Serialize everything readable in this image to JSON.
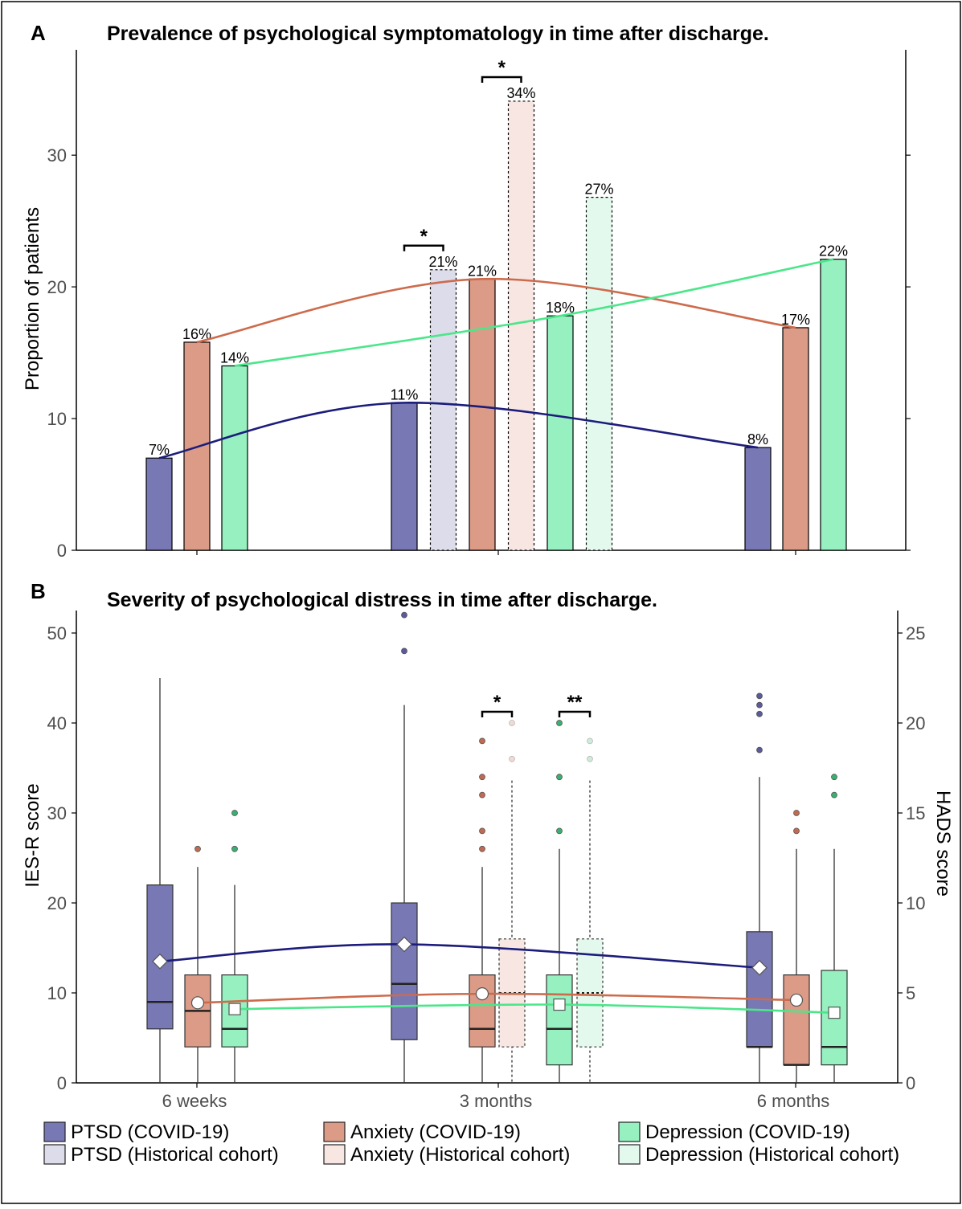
{
  "colors": {
    "ptsd": "#7878b4",
    "ptsd_hist": "#dcdcea",
    "anxiety": "#dc9b87",
    "anxiety_hist": "#f7e6e1",
    "depression": "#96f0c0",
    "depression_hist": "#e4f9ee",
    "line_ptsd": "#1c1c7c",
    "line_anxiety": "#cd6b4c",
    "line_depression": "#4ce68a",
    "ptsd_dot": "#5a5a9c",
    "anxiety_dot": "#c06a52",
    "depression_dot": "#3ab070"
  },
  "legend": [
    {
      "label": "PTSD (COVID-19)",
      "color_key": "ptsd",
      "style": "solid"
    },
    {
      "label": "Anxiety (COVID-19)",
      "color_key": "anxiety",
      "style": "solid"
    },
    {
      "label": "Depression (COVID-19)",
      "color_key": "depression",
      "style": "solid"
    },
    {
      "label": "PTSD (Historical cohort)",
      "color_key": "ptsd_hist",
      "style": "solid"
    },
    {
      "label": "Anxiety (Historical cohort)",
      "color_key": "anxiety_hist",
      "style": "solid"
    },
    {
      "label": "Depression (Historical cohort)",
      "color_key": "depression_hist",
      "style": "solid"
    }
  ],
  "chart_data": [
    {
      "panel": "A",
      "type": "bar",
      "title": "Prevalence of psychological symptomatology in time after discharge.",
      "ylabel": "Proportion of patients",
      "ylim": [
        0,
        38
      ],
      "yticks": [
        0,
        10,
        20,
        30
      ],
      "grid": false,
      "categories": [
        "6 weeks",
        "3 months",
        "6 months"
      ],
      "bars": [
        {
          "time": "6 weeks",
          "series": "PTSD (COVID-19)",
          "color_key": "ptsd",
          "value": 7,
          "label": "7%",
          "historical": false
        },
        {
          "time": "6 weeks",
          "series": "Anxiety (COVID-19)",
          "color_key": "anxiety",
          "value": 15.8,
          "label": "16%",
          "historical": false
        },
        {
          "time": "6 weeks",
          "series": "Depression (COVID-19)",
          "color_key": "depression",
          "value": 14,
          "label": "14%",
          "historical": false
        },
        {
          "time": "3 months",
          "series": "PTSD (COVID-19)",
          "color_key": "ptsd",
          "value": 11.2,
          "label": "11%",
          "historical": false
        },
        {
          "time": "3 months",
          "series": "PTSD (Historical cohort)",
          "color_key": "ptsd_hist",
          "value": 21.3,
          "label": "21%",
          "historical": true
        },
        {
          "time": "3 months",
          "series": "Anxiety (COVID-19)",
          "color_key": "anxiety",
          "value": 20.6,
          "label": "21%",
          "historical": false
        },
        {
          "time": "3 months",
          "series": "Anxiety (Historical cohort)",
          "color_key": "anxiety_hist",
          "value": 34.1,
          "label": "34%",
          "historical": true
        },
        {
          "time": "3 months",
          "series": "Depression (COVID-19)",
          "color_key": "depression",
          "value": 17.8,
          "label": "18%",
          "historical": false
        },
        {
          "time": "3 months",
          "series": "Depression (Historical cohort)",
          "color_key": "depression_hist",
          "value": 26.8,
          "label": "27%",
          "historical": true
        },
        {
          "time": "6 months",
          "series": "PTSD (COVID-19)",
          "color_key": "ptsd",
          "value": 7.8,
          "label": "8%",
          "historical": false
        },
        {
          "time": "6 months",
          "series": "Anxiety (COVID-19)",
          "color_key": "anxiety",
          "value": 16.9,
          "label": "17%",
          "historical": false
        },
        {
          "time": "6 months",
          "series": "Depression (COVID-19)",
          "color_key": "depression",
          "value": 22.1,
          "label": "22%",
          "historical": false
        }
      ],
      "trend_lines": [
        {
          "series": "PTSD (COVID-19)",
          "color_key": "line_ptsd",
          "points": [
            [
              0,
              7
            ],
            [
              1,
              11.2
            ],
            [
              2,
              7.8
            ]
          ]
        },
        {
          "series": "Anxiety (COVID-19)",
          "color_key": "line_anxiety",
          "points": [
            [
              0,
              15.8
            ],
            [
              1,
              20.6
            ],
            [
              2,
              16.9
            ]
          ]
        },
        {
          "series": "Depression (COVID-19)",
          "color_key": "line_depression",
          "points": [
            [
              0,
              14
            ],
            [
              1,
              17.8
            ],
            [
              2,
              22.1
            ]
          ]
        }
      ],
      "significance": [
        {
          "label": "*",
          "between": [
            "PTSD (COVID-19)",
            "PTSD (Historical cohort)"
          ],
          "time": "3 months"
        },
        {
          "label": "*",
          "between": [
            "Anxiety (COVID-19)",
            "Anxiety (Historical cohort)"
          ],
          "time": "3 months"
        }
      ]
    },
    {
      "panel": "B",
      "type": "box",
      "title": "Severity of psychological distress in time after discharge.",
      "ylabel": "IES-R score",
      "y2label": "HADS score",
      "ylim": [
        0,
        52.5
      ],
      "yticks": [
        0,
        10,
        20,
        30,
        40,
        50
      ],
      "y2ticks": [
        0,
        5,
        10,
        15,
        20,
        25
      ],
      "y2_scale": 0.5,
      "grid": false,
      "categories": [
        "6 weeks",
        "3 months",
        "6 months"
      ],
      "boxes": [
        {
          "time": "6 weeks",
          "series": "PTSD (COVID-19)",
          "color_key": "ptsd",
          "dot_key": "ptsd_dot",
          "scale": "IES-R",
          "min": 0,
          "q1": 6,
          "median": 9,
          "q3": 22,
          "max": 45,
          "mean": 13.5,
          "outliers": [],
          "historical": false
        },
        {
          "time": "6 weeks",
          "series": "Anxiety (COVID-19)",
          "color_key": "anxiety",
          "dot_key": "anxiety_dot",
          "scale": "HADS",
          "min": 0,
          "q1": 2,
          "median": 4,
          "q3": 6,
          "max": 12,
          "mean": 4.45,
          "outliers": [
            13
          ],
          "historical": false
        },
        {
          "time": "6 weeks",
          "series": "Depression (COVID-19)",
          "color_key": "depression",
          "dot_key": "depression_dot",
          "scale": "HADS",
          "min": 0,
          "q1": 2,
          "median": 3,
          "q3": 6,
          "max": 11,
          "mean": 4.1,
          "outliers": [
            13,
            15
          ],
          "historical": false
        },
        {
          "time": "3 months",
          "series": "PTSD (COVID-19)",
          "color_key": "ptsd",
          "dot_key": "ptsd_dot",
          "scale": "IES-R",
          "min": 0,
          "q1": 4.8,
          "median": 11,
          "q3": 20,
          "max": 42,
          "mean": 15.4,
          "outliers": [
            48,
            52
          ],
          "historical": false
        },
        {
          "time": "3 months",
          "series": "Anxiety (COVID-19)",
          "color_key": "anxiety",
          "dot_key": "anxiety_dot",
          "scale": "HADS",
          "min": 0,
          "q1": 2,
          "median": 3,
          "q3": 6,
          "max": 12,
          "mean": 4.95,
          "outliers": [
            13,
            14,
            16,
            17,
            19
          ],
          "historical": false
        },
        {
          "time": "3 months",
          "series": "Anxiety (Historical cohort)",
          "color_key": "anxiety_hist",
          "dot_key": "anxiety_dot",
          "scale": "HADS",
          "min": 0,
          "q1": 2,
          "median": 5,
          "q3": 8,
          "max": 16.8,
          "mean": null,
          "outliers": [
            18,
            20
          ],
          "historical": true
        },
        {
          "time": "3 months",
          "series": "Depression (COVID-19)",
          "color_key": "depression",
          "dot_key": "depression_dot",
          "scale": "HADS",
          "min": 0,
          "q1": 1,
          "median": 3,
          "q3": 6,
          "max": 13,
          "mean": 4.35,
          "outliers": [
            14,
            17,
            20
          ],
          "historical": false
        },
        {
          "time": "3 months",
          "series": "Depression (Historical cohort)",
          "color_key": "depression_hist",
          "dot_key": "depression_dot",
          "scale": "HADS",
          "min": 0,
          "q1": 2,
          "median": 5,
          "q3": 8,
          "max": 16.8,
          "mean": null,
          "outliers": [
            18,
            19
          ],
          "historical": true
        },
        {
          "time": "6 months",
          "series": "PTSD (COVID-19)",
          "color_key": "ptsd",
          "dot_key": "ptsd_dot",
          "scale": "IES-R",
          "min": 0,
          "q1": 4,
          "median": 4,
          "q3": 16.8,
          "max": 34,
          "mean": 12.8,
          "outliers": [
            37,
            41,
            42,
            43
          ],
          "historical": false
        },
        {
          "time": "6 months",
          "series": "Anxiety (COVID-19)",
          "color_key": "anxiety",
          "dot_key": "anxiety_dot",
          "scale": "HADS",
          "min": 0,
          "q1": 1,
          "median": 1,
          "q3": 6,
          "max": 13,
          "mean": 4.6,
          "outliers": [
            14,
            15
          ],
          "historical": false
        },
        {
          "time": "6 months",
          "series": "Depression (COVID-19)",
          "color_key": "depression",
          "dot_key": "depression_dot",
          "scale": "HADS",
          "min": 0,
          "q1": 1,
          "median": 2,
          "q3": 6.25,
          "max": 13,
          "mean": 3.9,
          "outliers": [
            16,
            17
          ],
          "historical": false
        }
      ],
      "trend_lines": [
        {
          "series": "PTSD (COVID-19)",
          "color_key": "line_ptsd",
          "marker": "diamond",
          "points": [
            [
              0,
              13.5
            ],
            [
              1,
              15.4
            ],
            [
              2,
              12.8
            ]
          ]
        },
        {
          "series": "Anxiety (COVID-19)",
          "color_key": "line_anxiety",
          "marker": "circle",
          "points": [
            [
              0,
              8.9
            ],
            [
              1,
              9.9
            ],
            [
              2,
              9.2
            ]
          ]
        },
        {
          "series": "Depression (COVID-19)",
          "color_key": "line_depression",
          "marker": "square",
          "points": [
            [
              0,
              8.2
            ],
            [
              1,
              8.7
            ],
            [
              2,
              7.8
            ]
          ]
        }
      ],
      "significance": [
        {
          "label": "*",
          "between": [
            "Anxiety (COVID-19)",
            "Anxiety (Historical cohort)"
          ],
          "time": "3 months"
        },
        {
          "label": "**",
          "between": [
            "Depression (COVID-19)",
            "Depression (Historical cohort)"
          ],
          "time": "3 months"
        }
      ]
    }
  ]
}
